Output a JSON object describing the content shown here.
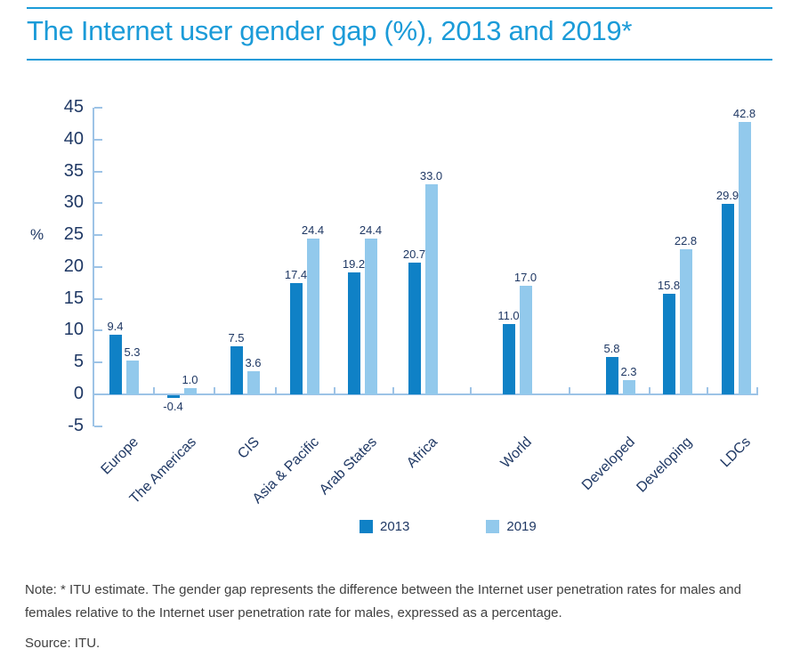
{
  "title": "The Internet user gender gap (%), 2013 and 2019*",
  "note": "Note: * ITU estimate. The gender gap represents the difference between the Internet user penetration rates for males and females relative to the Internet user penetration rate for males, expressed as a percentage.",
  "source": "Source: ITU.",
  "colors": {
    "title_blue": "#1b9bd8",
    "axis_blue": "#9dc3e6",
    "text_navy": "#1f3864",
    "note_gray": "#3f3f3f",
    "series_2013": "#0f81c6",
    "series_2019": "#92c9ec"
  },
  "chart_data": {
    "type": "bar",
    "title": "The Internet user gender gap (%), 2013 and 2019*",
    "categories": [
      "Europe",
      "The Americas",
      "CIS",
      "Asia & Pacific",
      "Arab States",
      "Africa",
      "World",
      "Developed",
      "Developing",
      "LDCs"
    ],
    "series": [
      {
        "name": "2013",
        "color": "#0f81c6",
        "values": [
          9.4,
          -0.4,
          7.5,
          17.4,
          19.2,
          20.7,
          11.0,
          5.8,
          15.8,
          29.9
        ]
      },
      {
        "name": "2019",
        "color": "#92c9ec",
        "values": [
          5.3,
          1.0,
          3.6,
          24.4,
          24.4,
          33.0,
          17.0,
          2.3,
          22.8,
          42.8
        ]
      }
    ],
    "xlabel": "",
    "ylabel": "%",
    "ylim": [
      -5,
      45
    ],
    "ytick_step": 5,
    "grid": false,
    "legend_position": "bottom",
    "data_labels": true,
    "value_format": "one_decimal"
  }
}
